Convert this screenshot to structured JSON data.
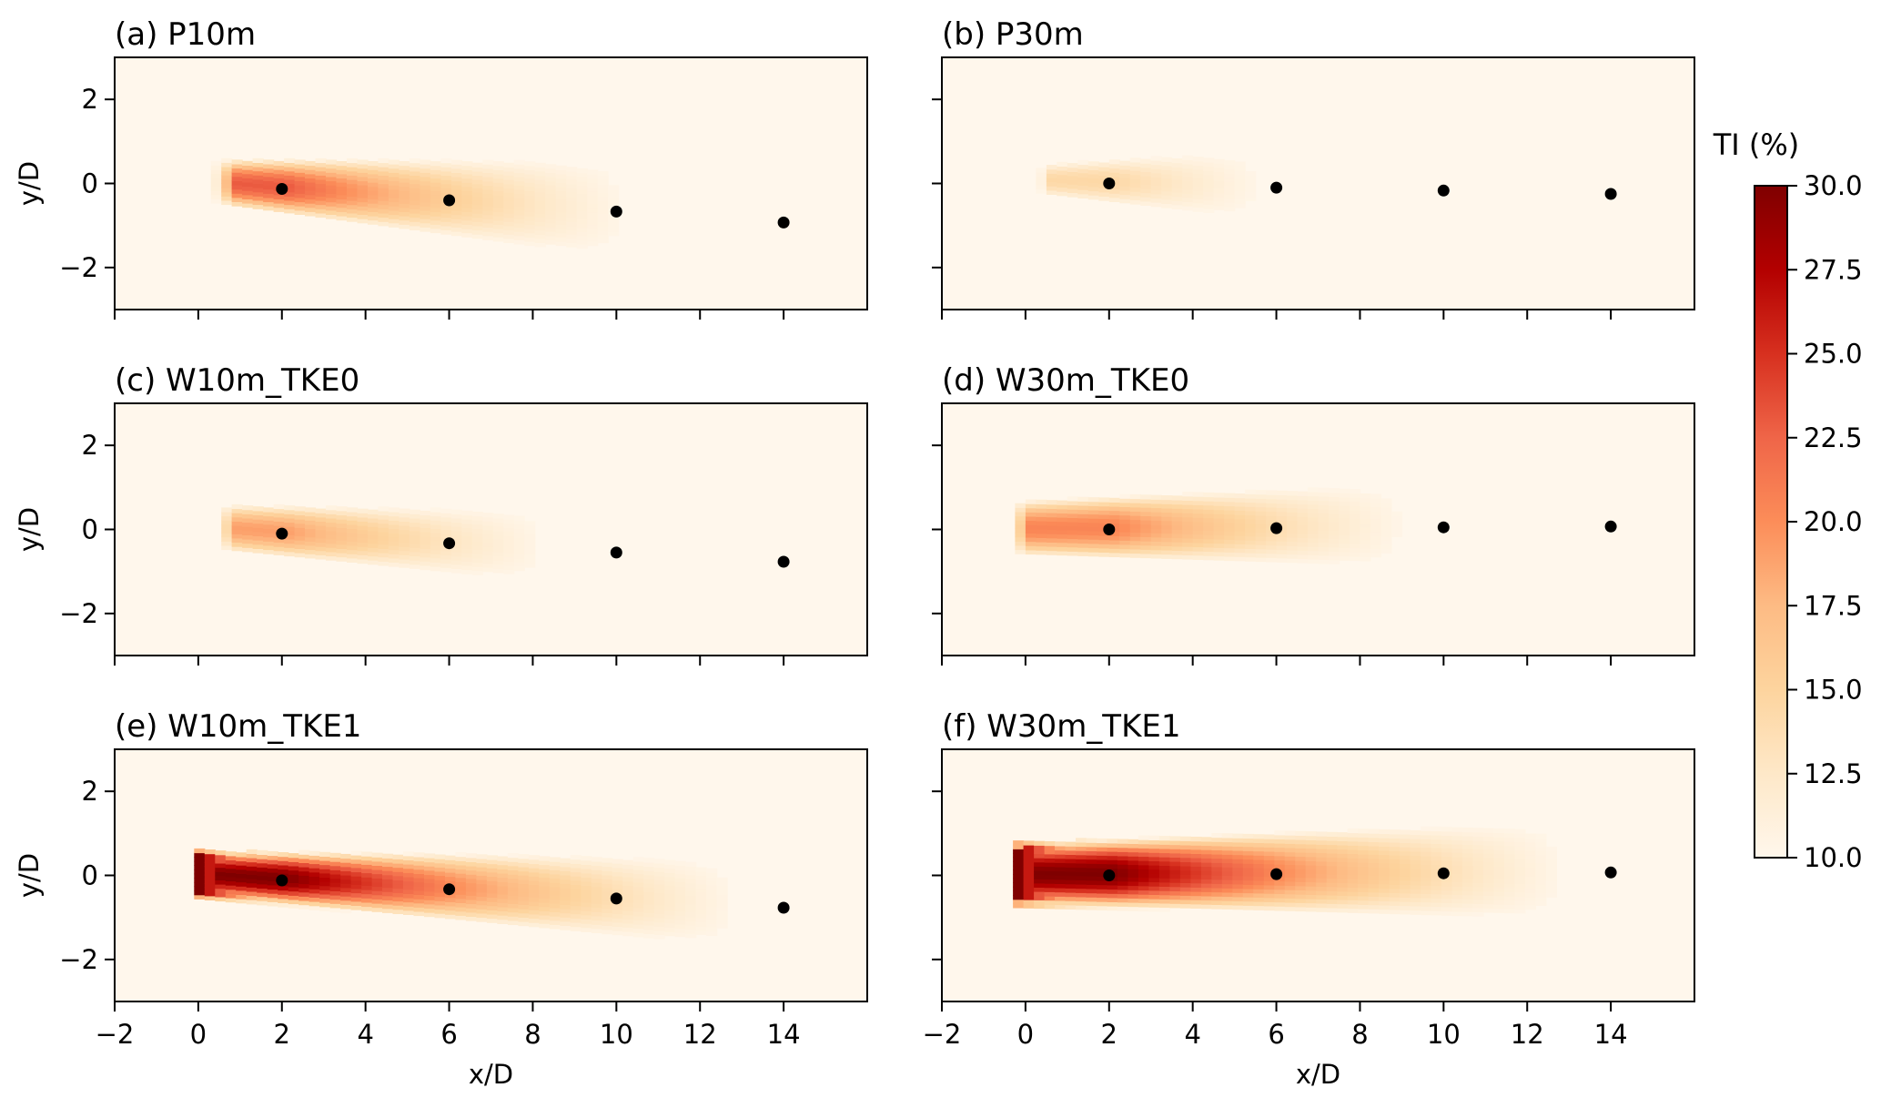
{
  "chart_data": {
    "type": "heatmap",
    "colormap": "OrRd",
    "colorbar": {
      "title": "TI (%)",
      "range": [
        10.0,
        30.0
      ],
      "ticks": [
        10.0,
        12.5,
        15.0,
        17.5,
        20.0,
        22.5,
        25.0,
        27.5,
        30.0
      ],
      "tick_labels": [
        "10.0",
        "12.5",
        "15.0",
        "17.5",
        "20.0",
        "22.5",
        "25.0",
        "27.5",
        "30.0"
      ]
    },
    "xlabel": "x/D",
    "ylabel": "y/D",
    "xlim": [
      -2,
      16
    ],
    "ylim": [
      -3,
      3
    ],
    "x_ticks": [
      -2,
      0,
      2,
      4,
      6,
      8,
      10,
      12,
      14
    ],
    "y_ticks": [
      -2,
      0,
      2
    ],
    "panels": [
      {
        "title": "(a) P10m",
        "wake_centers": [
          {
            "x": 2,
            "y": -0.13
          },
          {
            "x": 6,
            "y": -0.4
          },
          {
            "x": 10,
            "y": -0.67
          },
          {
            "x": 14,
            "y": -0.93
          }
        ],
        "peak_ti": 23,
        "wake_start_x": 0.3,
        "wake_end_x": 16,
        "half_width_start": 0.55,
        "half_width_end": 1.6
      },
      {
        "title": "(b) P30m",
        "wake_centers": [
          {
            "x": 2,
            "y": 0.0
          },
          {
            "x": 6,
            "y": -0.1
          },
          {
            "x": 10,
            "y": -0.17
          },
          {
            "x": 14,
            "y": -0.25
          }
        ],
        "peak_ti": 14.5,
        "wake_start_x": 0.0,
        "wake_end_x": 16,
        "half_width_start": 0.35,
        "half_width_end": 1.8
      },
      {
        "title": "(c) W10m_TKE0",
        "wake_centers": [
          {
            "x": 2,
            "y": -0.1
          },
          {
            "x": 6,
            "y": -0.33
          },
          {
            "x": 10,
            "y": -0.55
          },
          {
            "x": 14,
            "y": -0.77
          }
        ],
        "peak_ti": 19,
        "wake_start_x": 0.3,
        "wake_end_x": 15.5,
        "half_width_start": 0.55,
        "half_width_end": 1.2
      },
      {
        "title": "(d) W30m_TKE0",
        "wake_centers": [
          {
            "x": 2,
            "y": 0.0
          },
          {
            "x": 6,
            "y": 0.03
          },
          {
            "x": 10,
            "y": 0.05
          },
          {
            "x": 14,
            "y": 0.07
          }
        ],
        "peak_ti": 20.5,
        "wake_start_x": -0.5,
        "wake_end_x": 16,
        "half_width_start": 0.65,
        "half_width_end": 1.3
      },
      {
        "title": "(e) W10m_TKE1",
        "wake_centers": [
          {
            "x": 2,
            "y": -0.12
          },
          {
            "x": 6,
            "y": -0.33
          },
          {
            "x": 10,
            "y": -0.55
          },
          {
            "x": 14,
            "y": -0.77
          }
        ],
        "peak_ti": 30,
        "wake_start_x": -0.1,
        "wake_end_x": 15.5,
        "half_width_start": 0.55,
        "half_width_end": 1.2
      },
      {
        "title": "(f) W30m_TKE1",
        "wake_centers": [
          {
            "x": 2,
            "y": 0.0
          },
          {
            "x": 6,
            "y": 0.03
          },
          {
            "x": 10,
            "y": 0.05
          },
          {
            "x": 14,
            "y": 0.07
          }
        ],
        "peak_ti": 30,
        "wake_start_x": -0.3,
        "wake_end_x": 16,
        "half_width_start": 0.75,
        "half_width_end": 1.3
      }
    ]
  }
}
